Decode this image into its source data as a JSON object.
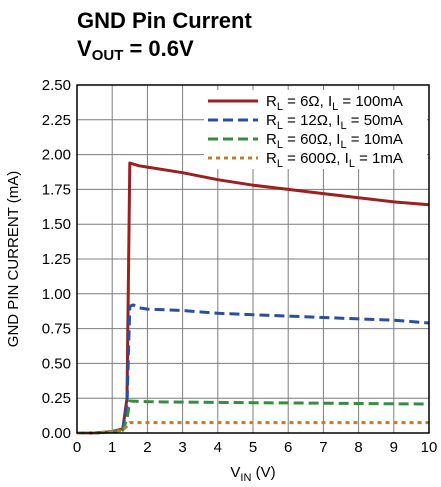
{
  "chart_data": {
    "type": "line",
    "title": "GND Pin Current",
    "subtitle": {
      "prefix": "V",
      "sub": "OUT",
      "suffix": " = 0.6V"
    },
    "xlabel": {
      "prefix": "V",
      "sub": "IN",
      "suffix": " (V)"
    },
    "ylabel": "GND PIN CURRENT (mA)",
    "xlim": [
      0,
      10
    ],
    "ylim": [
      0,
      2.5
    ],
    "xticks": [
      "0",
      "1",
      "2",
      "3",
      "4",
      "5",
      "6",
      "7",
      "8",
      "9",
      "10"
    ],
    "yticks": [
      "0.00",
      "0.25",
      "0.50",
      "0.75",
      "1.00",
      "1.25",
      "1.50",
      "1.75",
      "2.00",
      "2.25",
      "2.50"
    ],
    "grid": true,
    "legend_position": "top-right",
    "series": [
      {
        "name": "R_L = 6Ω, I_L = 100mA",
        "legend": [
          [
            "R",
            ""
          ],
          [
            "L",
            "sub"
          ],
          [
            " = 6Ω, I",
            ""
          ],
          [
            "L",
            "sub"
          ],
          [
            " = 100mA",
            ""
          ]
        ],
        "color": "#9b2121",
        "style": "solid",
        "x": [
          0,
          0.5,
          1.0,
          1.3,
          1.42,
          1.5,
          1.75,
          2.0,
          3,
          4,
          5,
          6,
          7,
          8,
          9,
          10
        ],
        "y": [
          0,
          0.0,
          0.01,
          0.03,
          0.25,
          1.94,
          1.92,
          1.91,
          1.87,
          1.82,
          1.78,
          1.75,
          1.72,
          1.69,
          1.66,
          1.64
        ]
      },
      {
        "name": "R_L = 12Ω, I_L = 50mA",
        "legend": [
          [
            "R",
            ""
          ],
          [
            "L",
            "sub"
          ],
          [
            " = 12Ω, I",
            ""
          ],
          [
            "L",
            "sub"
          ],
          [
            " = 50mA",
            ""
          ]
        ],
        "color": "#2b4f9e",
        "style": "dashed",
        "x": [
          0,
          0.5,
          1.0,
          1.3,
          1.42,
          1.5,
          1.6,
          1.75,
          2.0,
          3,
          4,
          5,
          6,
          7,
          8,
          9,
          10
        ],
        "y": [
          0,
          0.0,
          0.01,
          0.03,
          0.2,
          0.91,
          0.92,
          0.9,
          0.89,
          0.88,
          0.86,
          0.85,
          0.84,
          0.83,
          0.82,
          0.81,
          0.79
        ]
      },
      {
        "name": "R_L = 60Ω, I_L = 10mA",
        "legend": [
          [
            "R",
            ""
          ],
          [
            "L",
            "sub"
          ],
          [
            " = 60Ω, I",
            ""
          ],
          [
            "L",
            "sub"
          ],
          [
            " = 10mA",
            ""
          ]
        ],
        "color": "#3a8a3f",
        "style": "dashed",
        "x": [
          0,
          0.5,
          1.0,
          1.3,
          1.42,
          1.5,
          2.0,
          3,
          4,
          5,
          6,
          7,
          8,
          9,
          10
        ],
        "y": [
          0,
          0.0,
          0.01,
          0.02,
          0.1,
          0.23,
          0.225,
          0.222,
          0.22,
          0.218,
          0.216,
          0.214,
          0.212,
          0.21,
          0.208
        ]
      },
      {
        "name": "R_L = 600Ω, I_L = 1mA",
        "legend": [
          [
            "R",
            ""
          ],
          [
            "L",
            "sub"
          ],
          [
            " = 600Ω, I",
            ""
          ],
          [
            "L",
            "sub"
          ],
          [
            " = 1mA",
            ""
          ]
        ],
        "color": "#c47a32",
        "style": "dotted",
        "x": [
          0,
          0.5,
          1.0,
          1.3,
          1.42,
          1.5,
          2.0,
          3,
          4,
          5,
          6,
          7,
          8,
          9,
          10
        ],
        "y": [
          0,
          0.0,
          0.01,
          0.02,
          0.05,
          0.075,
          0.075,
          0.075,
          0.075,
          0.075,
          0.075,
          0.075,
          0.075,
          0.075,
          0.075
        ]
      }
    ]
  }
}
